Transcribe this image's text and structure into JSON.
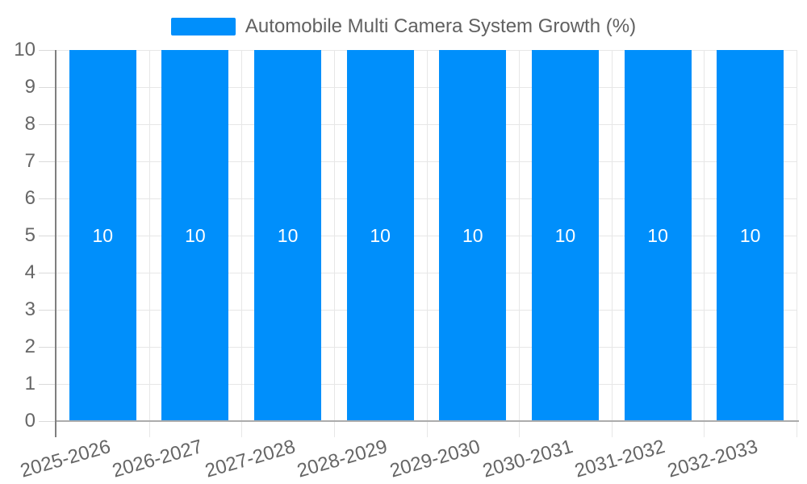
{
  "chart_data": {
    "type": "bar",
    "title": "Automobile Multi Camera System Growth (%)",
    "categories": [
      "2025-2026",
      "2026-2027",
      "2027-2028",
      "2028-2029",
      "2029-2030",
      "2030-2031",
      "2031-2032",
      "2032-2033"
    ],
    "series": [
      {
        "name": "Automobile Multi Camera System Growth (%)",
        "values": [
          10,
          10,
          10,
          10,
          10,
          10,
          10,
          10
        ]
      }
    ],
    "value_labels_shown": true,
    "xlabel": "",
    "ylabel": "",
    "ylim": [
      0,
      10
    ],
    "y_ticks": [
      0,
      1,
      2,
      3,
      4,
      5,
      6,
      7,
      8,
      9,
      10
    ],
    "x_label_rotation_deg": -16,
    "grid": true,
    "legend_position": "top-center",
    "colors": {
      "bar": "#008FFB",
      "grid": "#e7e7e7",
      "tick": "#dadada",
      "y_axis_line": "#7f7f7f",
      "x_axis_line": "#acacac",
      "axis_label": "#666666",
      "legend_text": "#616161",
      "value_label": "#ffffff"
    }
  }
}
